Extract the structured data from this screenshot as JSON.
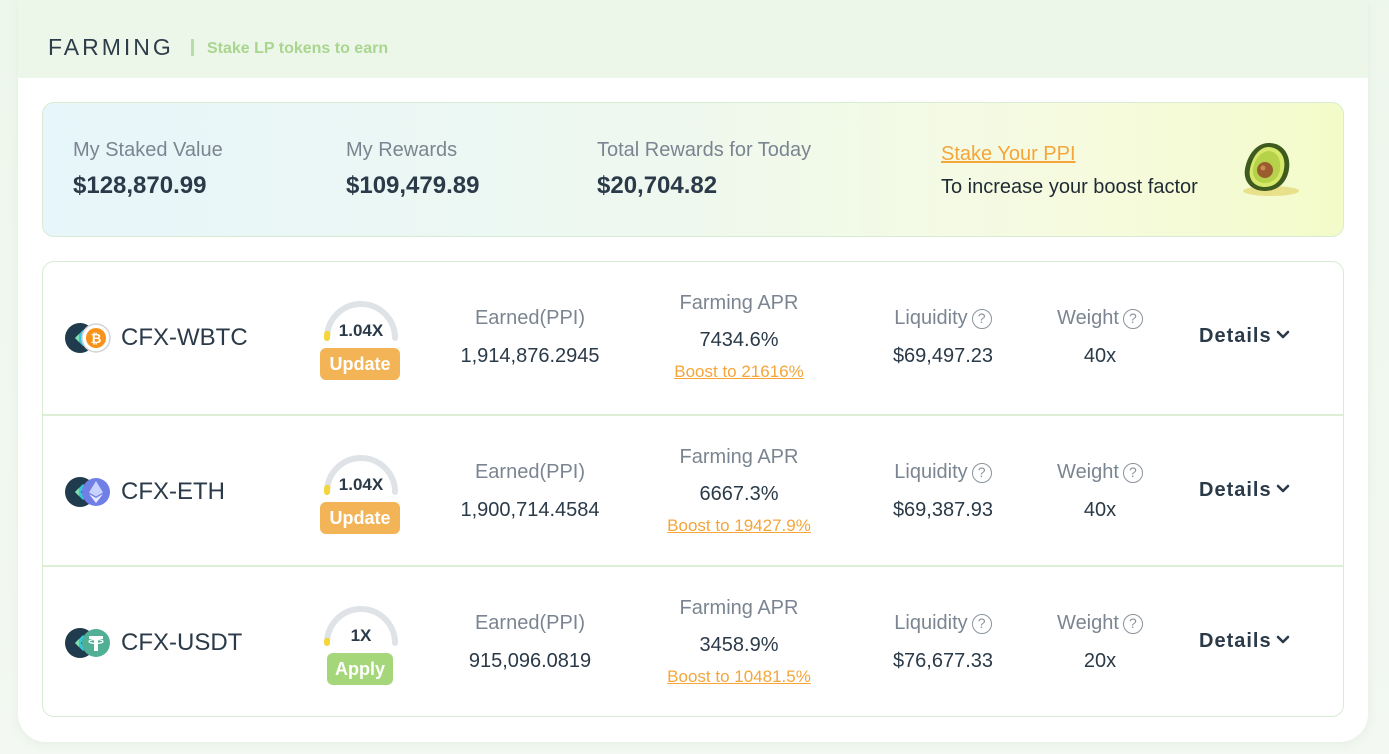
{
  "header": {
    "title": "FARMING",
    "subtitle": "Stake LP tokens to earn"
  },
  "summary": {
    "staked_label": "My Staked Value",
    "staked_value": "$128,870.99",
    "rewards_label": "My Rewards",
    "rewards_value": "$109,479.89",
    "today_label": "Total Rewards for Today",
    "today_value": "$20,704.82",
    "stake_link": "Stake Your PPI",
    "stake_desc": "To increase your boost factor",
    "mascot_icon": "avocado-icon"
  },
  "labels": {
    "earned": "Earned(PPI)",
    "apr": "Farming APR",
    "liquidity": "Liquidity",
    "weight": "Weight",
    "details": "Details",
    "help": "?"
  },
  "pools": [
    {
      "pair": "CFX-WBTC",
      "icons": [
        "cfx-icon",
        "btc-icon"
      ],
      "boost": "1.04X",
      "boost_level": 0.04,
      "button": "Update",
      "earned": "1,914,876.2945",
      "apr": "7434.6%",
      "boost_apr": "Boost to 21616%",
      "liquidity": "$69,497.23",
      "weight": "40x"
    },
    {
      "pair": "CFX-ETH",
      "icons": [
        "cfx-icon",
        "eth-icon"
      ],
      "boost": "1.04X",
      "boost_level": 0.04,
      "button": "Update",
      "earned": "1,900,714.4584",
      "apr": "6667.3%",
      "boost_apr": "Boost to 19427.9%",
      "liquidity": "$69,387.93",
      "weight": "40x"
    },
    {
      "pair": "CFX-USDT",
      "icons": [
        "cfx-icon",
        "usdt-icon"
      ],
      "boost": "1X",
      "boost_level": 0.02,
      "button": "Apply",
      "earned": "915,096.0819",
      "apr": "3458.9%",
      "boost_apr": "Boost to 10481.5%",
      "liquidity": "$76,677.33",
      "weight": "20x"
    }
  ],
  "colors": {
    "accent": "#f5a53a",
    "update_button": "#f3b457",
    "apply_button": "#a5d67a",
    "gauge_fill": "#f5d63a"
  }
}
